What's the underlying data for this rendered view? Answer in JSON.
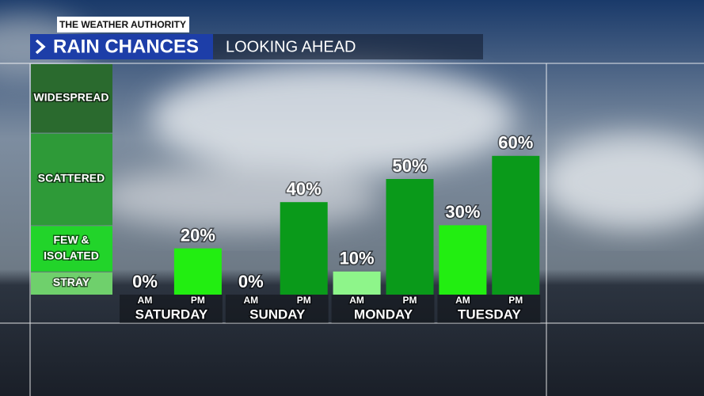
{
  "header": {
    "brand": "THE WEATHER AUTHORITY",
    "title": "RAIN CHANCES",
    "subtitle": "LOOKING AHEAD"
  },
  "chart_data": {
    "type": "bar",
    "categories": [
      "AM",
      "PM",
      "AM",
      "PM",
      "AM",
      "PM",
      "AM",
      "PM"
    ],
    "days": [
      "SATURDAY",
      "SUNDAY",
      "MONDAY",
      "TUESDAY"
    ],
    "values": [
      0,
      20,
      0,
      40,
      10,
      50,
      30,
      60
    ],
    "value_labels": [
      "0%",
      "20%",
      "0%",
      "40%",
      "10%",
      "50%",
      "30%",
      "60%"
    ],
    "colors": [
      "#8ef58a",
      "#22ee11",
      "#8ef58a",
      "#0a9a1a",
      "#8ef58a",
      "#0a9a1a",
      "#22ee11",
      "#0a9a1a"
    ],
    "ylim": [
      0,
      100
    ],
    "bands": [
      {
        "label": [
          "STRAY"
        ],
        "range": [
          0,
          10
        ],
        "color": "#6fd06c"
      },
      {
        "label": [
          "FEW &",
          "ISOLATED"
        ],
        "range": [
          10,
          30
        ],
        "color": "#22d42a"
      },
      {
        "label": [
          "SCATTERED"
        ],
        "range": [
          30,
          70
        ],
        "color": "#2e9a38"
      },
      {
        "label": [
          "WIDESPREAD"
        ],
        "range": [
          70,
          100
        ],
        "color": "#2a6a2e"
      }
    ]
  }
}
